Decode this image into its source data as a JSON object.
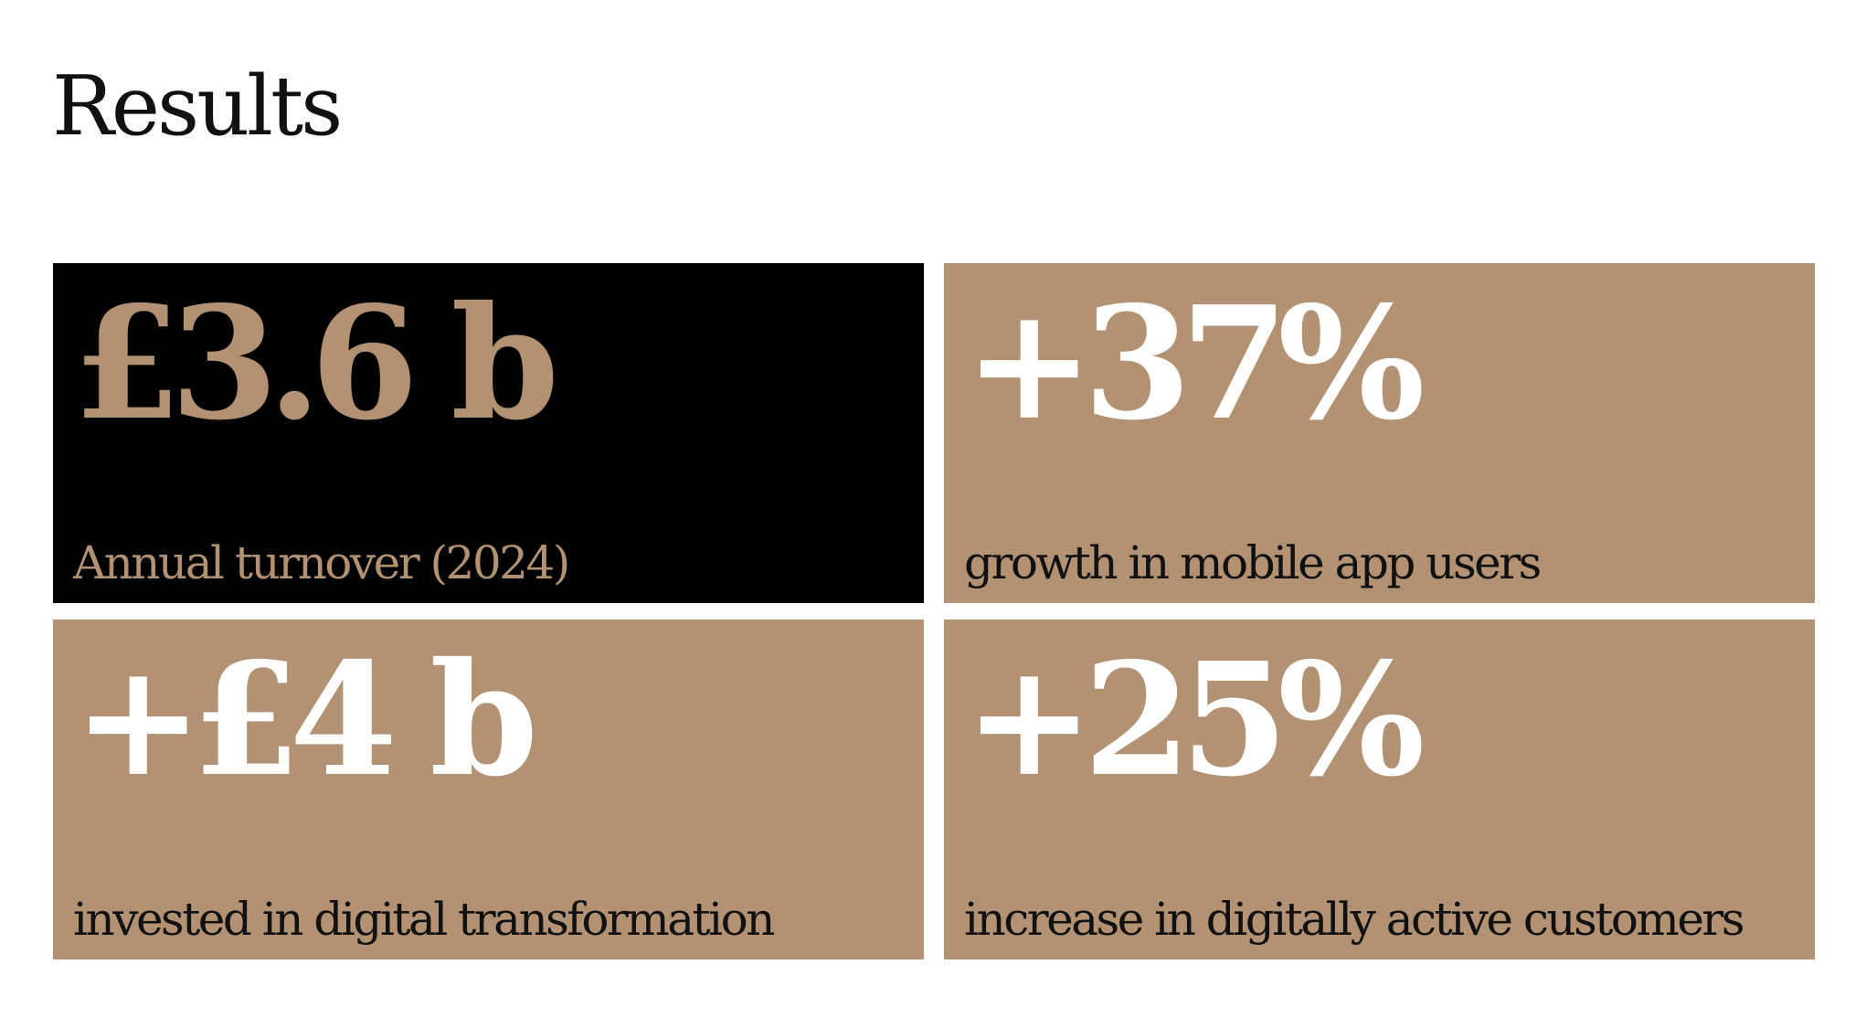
{
  "page": {
    "title": "Results"
  },
  "colors": {
    "accent_tan": "#b29272",
    "dark_card": "#000000",
    "text_dark": "#111111",
    "text_light": "#ffffff"
  },
  "cards": [
    {
      "stat": "£3.6 b",
      "caption": "Annual turnover (2024)",
      "theme": "dark"
    },
    {
      "stat": "+37%",
      "caption": "growth in mobile app users",
      "theme": "tan"
    },
    {
      "stat": "+£4 b",
      "caption": "invested in digital transformation",
      "theme": "tan"
    },
    {
      "stat": "+25%",
      "caption": "increase in digitally active customers",
      "theme": "tan"
    }
  ]
}
